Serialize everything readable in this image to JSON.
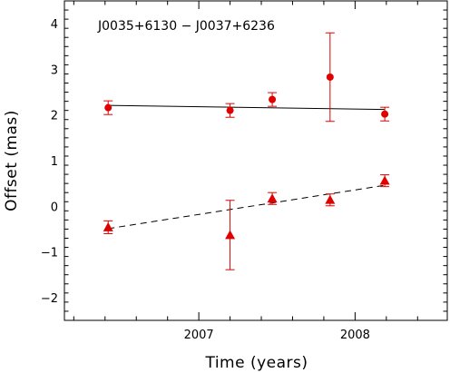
{
  "chart_data": {
    "type": "scatter",
    "title": "J0035+6130 − J0037+6236",
    "xlabel": "Time (years)",
    "ylabel": "Offset (mas)",
    "xlim": [
      2006.14,
      2008.59
    ],
    "ylim": [
      -2.5,
      4.5
    ],
    "x_ticks": [
      2007,
      2008
    ],
    "y_ticks": [
      -2,
      -1,
      0,
      1,
      2,
      3,
      4
    ],
    "x_tick_labels": [
      "2007",
      "2008"
    ],
    "y_tick_labels": [
      "−2",
      "−1",
      "0",
      "1",
      "2",
      "3",
      "4"
    ],
    "grid": false,
    "series": [
      {
        "marker": "circle",
        "color": "#e00000",
        "points": [
          {
            "x": 2006.42,
            "y": 2.16,
            "err": 0.15
          },
          {
            "x": 2007.2,
            "y": 2.1,
            "err": 0.15
          },
          {
            "x": 2007.47,
            "y": 2.34,
            "err": 0.15
          },
          {
            "x": 2007.84,
            "y": 2.83,
            "err": 0.97
          },
          {
            "x": 2008.19,
            "y": 2.02,
            "err": 0.15
          }
        ],
        "fit": {
          "style": "solid",
          "x": [
            2006.42,
            2008.19
          ],
          "y": [
            2.21,
            2.12
          ]
        }
      },
      {
        "marker": "triangle",
        "color": "#e00000",
        "points": [
          {
            "x": 2006.42,
            "y": -0.46,
            "err": 0.14
          },
          {
            "x": 2007.2,
            "y": -0.63,
            "err": 0.76
          },
          {
            "x": 2007.47,
            "y": 0.17,
            "err": 0.13
          },
          {
            "x": 2007.84,
            "y": 0.14,
            "err": 0.13
          },
          {
            "x": 2008.19,
            "y": 0.56,
            "err": 0.13
          }
        ],
        "fit": {
          "style": "dashed",
          "x": [
            2006.42,
            2008.19
          ],
          "y": [
            -0.49,
            0.46
          ]
        }
      }
    ]
  }
}
